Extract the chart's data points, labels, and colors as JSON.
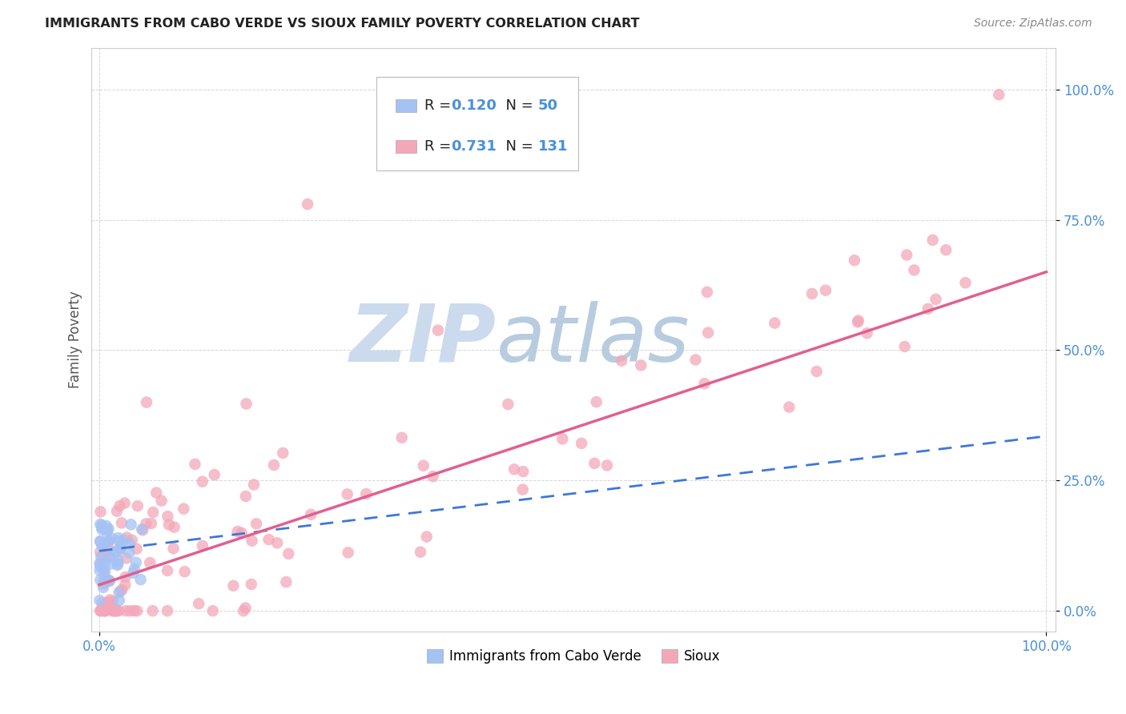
{
  "title": "IMMIGRANTS FROM CABO VERDE VS SIOUX FAMILY POVERTY CORRELATION CHART",
  "source": "Source: ZipAtlas.com",
  "ylabel": "Family Poverty",
  "legend_r1": "R = 0.120",
  "legend_n1": "N = 50",
  "legend_r2": "R = 0.731",
  "legend_n2": "N = 131",
  "cabo_verde_color": "#a4c2f4",
  "sioux_color": "#f4a7b9",
  "cabo_verde_line_color": "#3c78d8",
  "sioux_line_color": "#e06090",
  "watermark_zip_color": "#c8d8ee",
  "watermark_atlas_color": "#b8c8de",
  "background_color": "#ffffff",
  "grid_color": "#cccccc",
  "tick_color": "#4a90d9",
  "title_color": "#222222",
  "source_color": "#888888",
  "ylabel_color": "#555555",
  "legend_text_dark": "#222222",
  "legend_text_blue": "#4a90d9"
}
